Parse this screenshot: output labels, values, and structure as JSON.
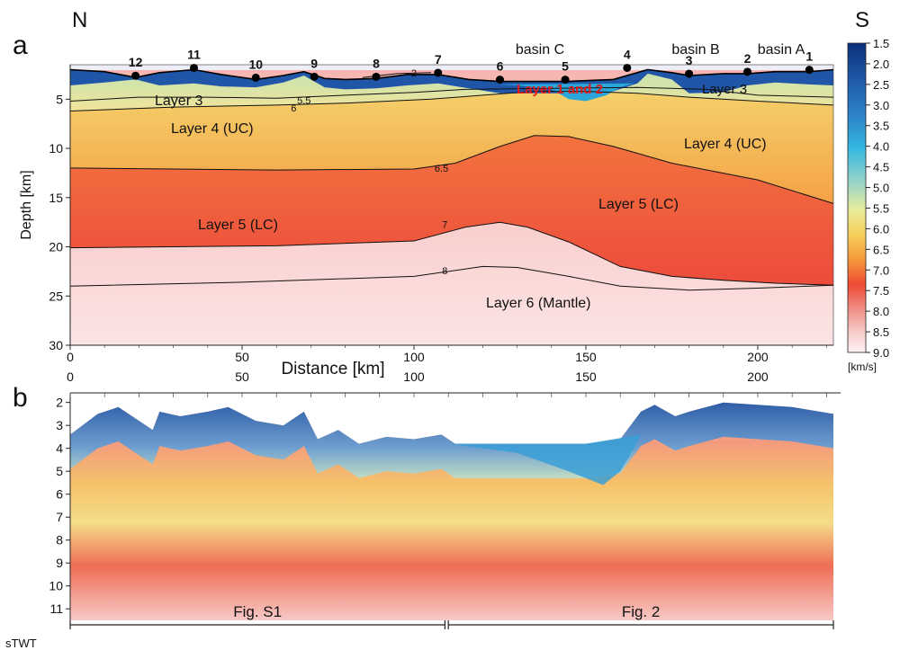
{
  "labels": {
    "north": "N",
    "south": "S",
    "panel_a": "a",
    "panel_b": "b",
    "basin_c": "basin C",
    "basin_b": "basin B",
    "basin_a": "basin A",
    "layers_1_2": "Layer 1 and 2",
    "layer3_left": "Layer 3",
    "layer3_right": "Layer 3",
    "layer4_left": "Layer 4 (UC)",
    "layer4_right": "Layer 4 (UC)",
    "layer5_left": "Layer 5 (LC)",
    "layer5_right": "Layer 5 (LC)",
    "layer6": "Layer 6 (Mantle)",
    "fig_s1": "Fig. S1",
    "fig_2": "Fig. 2"
  },
  "colors": {
    "layer12": "#1f56a8",
    "basin_fill": "#2aa6d8",
    "layer3": "#d6e6a4",
    "layer4": "#f6b647",
    "layer5": "#ef5b3c",
    "layer6": "#f7c4c0",
    "stations": "#000000",
    "red_label": "#e01a1a"
  },
  "chart_data": [
    {
      "type": "heatmap",
      "panel": "a",
      "xlabel": "Distance [km]",
      "ylabel": "Depth [km]",
      "xlim": [
        0,
        222
      ],
      "ylim": [
        30,
        1.5
      ],
      "x_ticks": [
        0,
        50,
        100,
        150,
        200
      ],
      "x_tick_labels": [
        "0",
        "50",
        "100",
        "150",
        "200"
      ],
      "y_ticks": [
        5,
        10,
        15,
        20,
        25,
        30
      ],
      "y_tick_labels": [
        "5",
        "10",
        "15",
        "20",
        "25",
        "30"
      ],
      "colorbar": {
        "ticks": [
          "1.5",
          "2.0",
          "2.5",
          "3.0",
          "3.5",
          "4.0",
          "4.5",
          "5.0",
          "5.5",
          "6.0",
          "6.5",
          "7.0",
          "7.5",
          "8.0",
          "8.5",
          "9.0"
        ],
        "unit": "[km/s]"
      },
      "stations": [
        {
          "label": "12",
          "x": 19
        },
        {
          "label": "11",
          "x": 36
        },
        {
          "label": "10",
          "x": 54
        },
        {
          "label": "9",
          "x": 71
        },
        {
          "label": "8",
          "x": 89
        },
        {
          "label": "7",
          "x": 107
        },
        {
          "label": "6",
          "x": 125
        },
        {
          "label": "5",
          "x": 144
        },
        {
          "label": "4",
          "x": 162
        },
        {
          "label": "3",
          "x": 180
        },
        {
          "label": "2",
          "x": 197
        },
        {
          "label": "1",
          "x": 215
        }
      ],
      "contours": [
        {
          "label": "7",
          "label_x": 109,
          "label_y": 17.7,
          "points": [
            [
              0,
              20.1
            ],
            [
              60,
              19.9
            ],
            [
              100,
              19.4
            ],
            [
              115,
              18.0
            ],
            [
              125,
              17.5
            ],
            [
              133,
              18.0
            ],
            [
              145,
              19.5
            ],
            [
              160,
              22.0
            ],
            [
              175,
              23.0
            ],
            [
              190,
              23.4
            ],
            [
              205,
              23.7
            ],
            [
              222,
              23.9
            ]
          ]
        },
        {
          "label": "8",
          "label_x": 109,
          "label_y": 22.4,
          "points": [
            [
              0,
              24.0
            ],
            [
              50,
              23.6
            ],
            [
              100,
              23.0
            ],
            [
              120,
              22.0
            ],
            [
              130,
              22.1
            ],
            [
              145,
              23.0
            ],
            [
              160,
              24.0
            ],
            [
              180,
              24.4
            ],
            [
              200,
              24.2
            ],
            [
              222,
              23.9
            ]
          ]
        },
        {
          "label": "6.5",
          "label_x": 108,
          "label_y": 12.0,
          "points": [
            [
              0,
              12.0
            ],
            [
              60,
              12.2
            ],
            [
              100,
              12.1
            ],
            [
              112,
              11.5
            ],
            [
              125,
              9.8
            ],
            [
              135,
              8.7
            ],
            [
              145,
              8.8
            ],
            [
              158,
              9.8
            ],
            [
              175,
              11.5
            ],
            [
              200,
              13.2
            ],
            [
              222,
              15.6
            ]
          ]
        },
        {
          "label": "6",
          "label_x": 65,
          "label_y": 5.9,
          "points": [
            [
              0,
              6.2
            ],
            [
              30,
              5.8
            ],
            [
              60,
              5.6
            ],
            [
              80,
              5.4
            ],
            [
              105,
              5.0
            ],
            [
              120,
              4.6
            ],
            [
              135,
              4.2
            ],
            [
              150,
              4.2
            ],
            [
              165,
              4.4
            ],
            [
              180,
              4.8
            ],
            [
              200,
              5.2
            ],
            [
              222,
              5.6
            ]
          ]
        },
        {
          "label": "5.5",
          "label_x": 68,
          "label_y": 5.1,
          "points": [
            [
              0,
              5.2
            ],
            [
              20,
              4.8
            ],
            [
              40,
              4.8
            ],
            [
              60,
              4.9
            ],
            [
              80,
              4.6
            ],
            [
              100,
              4.3
            ],
            [
              115,
              4.0
            ],
            [
              165,
              3.8
            ],
            [
              185,
              4.0
            ],
            [
              200,
              4.6
            ],
            [
              222,
              4.8
            ]
          ]
        },
        {
          "label": "2",
          "label_x": 100,
          "label_y": 2.3,
          "points": [
            [
              85,
              2.8
            ],
            [
              95,
              2.4
            ],
            [
              105,
              2.3
            ]
          ]
        }
      ]
    },
    {
      "type": "heatmap",
      "panel": "b",
      "xlabel": "",
      "ylabel": "sTWT",
      "xlim": [
        0,
        222
      ],
      "ylim": [
        11.5,
        1.7
      ],
      "x_ticks": [
        0,
        50,
        100,
        150,
        200
      ],
      "x_tick_labels": [
        "0",
        "50",
        "100",
        "150",
        "200"
      ],
      "y_ticks": [
        2,
        3,
        4,
        5,
        6,
        7,
        8,
        9,
        10,
        11
      ],
      "y_tick_labels": [
        "2",
        "3",
        "4",
        "5",
        "6",
        "7",
        "8",
        "9",
        "10",
        "11"
      ],
      "segments": [
        {
          "label": "Fig. S1",
          "x0": 0,
          "x1": 109
        },
        {
          "label": "Fig. 2",
          "x0": 110,
          "x1": 222
        }
      ]
    }
  ]
}
